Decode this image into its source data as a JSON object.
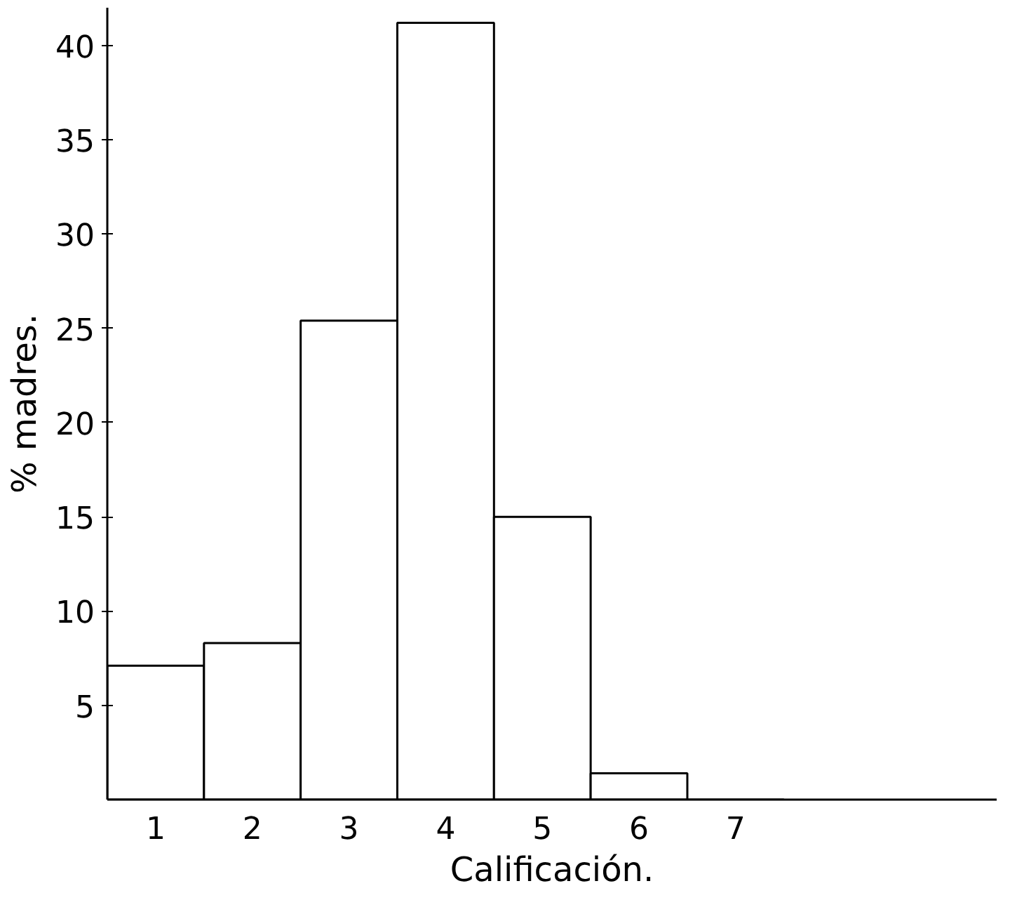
{
  "chart_data": {
    "type": "bar",
    "xlabel": "Calificación.",
    "ylabel": "% madres.",
    "categories": [
      "1",
      "2",
      "3",
      "4",
      "5",
      "6",
      "7"
    ],
    "values": [
      7.1,
      8.3,
      25.4,
      41.2,
      15.0,
      1.4,
      0
    ],
    "color": "#ffffff",
    "ylim": [
      0,
      42
    ],
    "yticks": [
      5,
      10,
      15,
      20,
      25,
      30,
      35,
      40
    ],
    "grid": false
  }
}
